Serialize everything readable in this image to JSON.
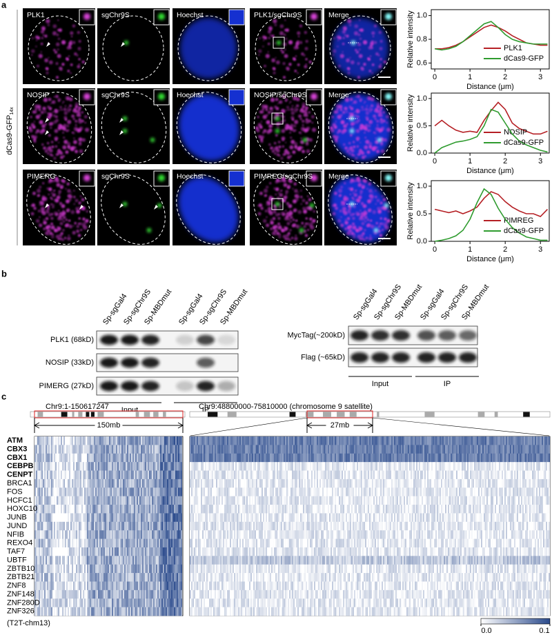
{
  "panel_labels": [
    "a",
    "b",
    "c"
  ],
  "panel_a": {
    "side_label": "dCas9-GFP",
    "side_label_sub": "14x",
    "rows": [
      [
        "PLK1",
        "sgChr9S",
        "Hoechst",
        "PLK1/sgChr9S",
        "Merge"
      ],
      [
        "NOSIP",
        "sgChr9S",
        "Hoechst",
        "NOSIP/sgChr9S",
        "Merge"
      ],
      [
        "PIMERG",
        "sgChr9S",
        "Hoechst",
        "PIMREG/sgChr9S",
        "Merge"
      ]
    ]
  },
  "chart_data": [
    {
      "type": "line",
      "x_label": "Distance (μm)",
      "y_label": "Relative intensity",
      "x": [
        0,
        0.2,
        0.4,
        0.6,
        0.8,
        1.0,
        1.2,
        1.4,
        1.6,
        1.8,
        2.0,
        2.2,
        2.4,
        2.6,
        2.8,
        3.0,
        3.2
      ],
      "xlim": [
        -0.1,
        3.25
      ],
      "xticks": [
        0,
        1,
        2,
        3
      ],
      "ylim": [
        0.55,
        1.05
      ],
      "yticks": [
        0.6,
        0.8,
        {
          "value": 1.0,
          "label": "1.0"
        }
      ],
      "series": [
        {
          "name": "PLK1",
          "color": "#b51f24",
          "values": [
            0.72,
            0.72,
            0.73,
            0.75,
            0.78,
            0.82,
            0.86,
            0.9,
            0.92,
            0.9,
            0.87,
            0.83,
            0.8,
            0.77,
            0.76,
            0.75,
            0.75
          ]
        },
        {
          "name": "dCas9-GFP",
          "color": "#2e9b2e",
          "values": [
            0.72,
            0.71,
            0.72,
            0.74,
            0.78,
            0.83,
            0.88,
            0.93,
            0.95,
            0.9,
            0.84,
            0.8,
            0.78,
            0.77,
            0.76,
            0.76,
            0.76
          ]
        }
      ]
    },
    {
      "type": "line",
      "x_label": "Distance (μm)",
      "y_label": "Relative intensity",
      "x": [
        0,
        0.2,
        0.4,
        0.6,
        0.8,
        1.0,
        1.2,
        1.4,
        1.6,
        1.8,
        2.0,
        2.2,
        2.4,
        2.6,
        2.8,
        3.0,
        3.2
      ],
      "xlim": [
        -0.1,
        3.25
      ],
      "xticks": [
        0,
        1,
        2,
        3
      ],
      "ylim": [
        0,
        1.1
      ],
      "yticks": [
        {
          "value": 0,
          "label": "0.0"
        },
        0.5,
        {
          "value": 1.0,
          "label": "1.0"
        }
      ],
      "series": [
        {
          "name": "NOSIP",
          "color": "#b51f24",
          "values": [
            0.5,
            0.6,
            0.5,
            0.42,
            0.38,
            0.4,
            0.38,
            0.6,
            0.78,
            0.93,
            0.8,
            0.55,
            0.45,
            0.4,
            0.35,
            0.35,
            0.4
          ]
        },
        {
          "name": "dCas9-GFP",
          "color": "#2e9b2e",
          "values": [
            0,
            0.1,
            0.15,
            0.2,
            0.22,
            0.25,
            0.3,
            0.5,
            0.8,
            0.75,
            0.55,
            0.35,
            0.22,
            0.15,
            0.1,
            0.05,
            0.02
          ]
        }
      ]
    },
    {
      "type": "line",
      "x_label": "Distance (μm)",
      "y_label": "Relative intensity",
      "x": [
        0,
        0.2,
        0.4,
        0.6,
        0.8,
        1.0,
        1.2,
        1.4,
        1.6,
        1.8,
        2.0,
        2.2,
        2.4,
        2.6,
        2.8,
        3.0,
        3.2
      ],
      "xlim": [
        -0.1,
        3.25
      ],
      "xticks": [
        0,
        1,
        2,
        3
      ],
      "ylim": [
        0,
        1.1
      ],
      "yticks": [
        {
          "value": 0,
          "label": "0.0"
        },
        0.5,
        {
          "value": 1.0,
          "label": "1.0"
        }
      ],
      "series": [
        {
          "name": "PIMREG",
          "color": "#b51f24",
          "values": [
            0.58,
            0.55,
            0.52,
            0.55,
            0.5,
            0.55,
            0.62,
            0.78,
            0.9,
            0.85,
            0.72,
            0.62,
            0.55,
            0.5,
            0.5,
            0.45,
            0.58
          ]
        },
        {
          "name": "dCas9-GFP",
          "color": "#2e9b2e",
          "values": [
            0,
            0.02,
            0.05,
            0.1,
            0.2,
            0.4,
            0.7,
            0.95,
            0.85,
            0.6,
            0.4,
            0.25,
            0.15,
            0.08,
            0.05,
            0.02,
            0.02
          ]
        }
      ]
    }
  ],
  "panel_b": {
    "left": {
      "lanes": [
        "Sp-sgGal4",
        "Sp-sgChr9S",
        "Sp-MBDmut",
        "Sp-sgGal4",
        "Sp-sgChr9S",
        "Sp-MBDmut"
      ],
      "rows": [
        "PLK1 (68kD)",
        "NOSIP (33kD)",
        "PIMERG (27kD)"
      ],
      "groups": [
        "Input",
        "IP"
      ]
    },
    "right": {
      "lanes": [
        "Sp-sgGal4",
        "Sp-sgChr9S",
        "Sp-MBDmut",
        "Sp-sgGal4",
        "Sp-sgChr9S",
        "Sp-MBDmut"
      ],
      "rows": [
        "MycTag(~200kD)",
        "Flag (~65kD)"
      ],
      "groups": [
        "Input",
        "IP"
      ]
    }
  },
  "panel_c": {
    "left_title": "Chr9:1-150617247",
    "right_title": "Chr9:48800000-75810000 (chromosome 9 satellite)",
    "left_span": "150mb",
    "right_span": "27mb",
    "genes": [
      {
        "label": "ATM",
        "bold": true
      },
      {
        "label": "CBX3",
        "bold": true
      },
      {
        "label": "CBX1",
        "bold": true
      },
      {
        "label": "CEBPB",
        "bold": true
      },
      {
        "label": "CENPT",
        "bold": true
      },
      {
        "label": "BRCA1",
        "bold": false
      },
      {
        "label": "FOS",
        "bold": false
      },
      {
        "label": "HCFC1",
        "bold": false
      },
      {
        "label": "HOXC10",
        "bold": false
      },
      {
        "label": "JUNB",
        "bold": false
      },
      {
        "label": "JUND",
        "bold": false
      },
      {
        "label": "NFIB",
        "bold": false
      },
      {
        "label": "REXO4",
        "bold": false
      },
      {
        "label": "TAF7",
        "bold": false
      },
      {
        "label": "UBTF",
        "bold": false
      },
      {
        "label": "ZBTB10",
        "bold": false
      },
      {
        "label": "ZBTB21",
        "bold": false
      },
      {
        "label": "ZNF8",
        "bold": false
      },
      {
        "label": "ZNF148",
        "bold": false
      },
      {
        "label": "ZNF280D",
        "bold": false
      },
      {
        "label": "ZNF326",
        "bold": false
      }
    ],
    "footnote": "(T2T-chm13)",
    "colorbar": {
      "ticks": [
        {
          "value": 0,
          "label": "0.0"
        },
        0.1
      ],
      "colors": [
        "#ffffff",
        "#2a4a8c"
      ]
    }
  }
}
